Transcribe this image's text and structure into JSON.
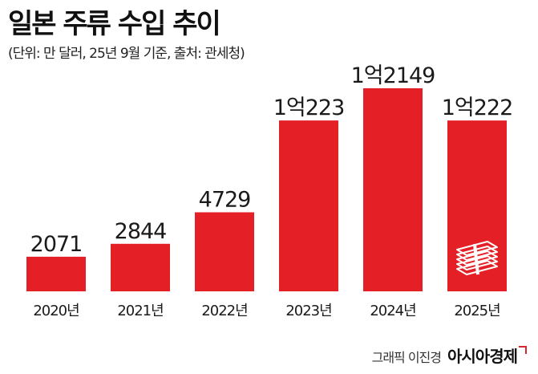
{
  "title": "일본 주류 수입 추이",
  "subtitle": "(단위: 만 달러, 25년 9월 기준, 출처: 관세청)",
  "credit": {
    "name": "그래픽 이진경",
    "brand": "아시아경제"
  },
  "colors": {
    "bar": "#e41f26",
    "text": "#1a1a1a"
  },
  "icons": {
    "money_stack": "money-stack-icon"
  },
  "chart_data": {
    "type": "bar",
    "categories": [
      "2020년",
      "2021년",
      "2022년",
      "2023년",
      "2024년",
      "2025년"
    ],
    "values": [
      2071,
      2844,
      4729,
      10223,
      12149,
      10222
    ],
    "value_labels": [
      "2071",
      "2844",
      "4729",
      "1억223",
      "1억2149",
      "1억222"
    ],
    "title": "일본 주류 수입 추이",
    "xlabel": "",
    "ylabel": "",
    "unit": "만 달러",
    "ylim": [
      0,
      12149
    ],
    "grid": false,
    "legend": "none"
  }
}
